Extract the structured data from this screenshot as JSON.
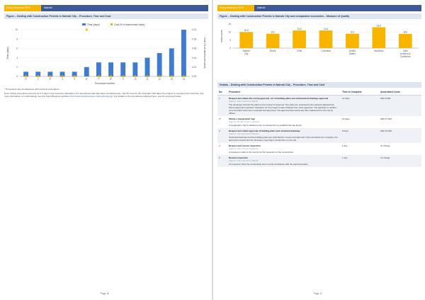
{
  "left": {
    "header": {
      "tag": "Doing Business 2016",
      "city": "Nairobi"
    },
    "figure_title": "Figure – Dealing with Construction Permits in Nairobi City – Procedure, Time and Cost",
    "note_1": "* Procedures are simultaneous with previous procedures.",
    "note_2": "Note: Online procedures account for 0.0 days in the total time calculation. For procedures that take place simultaneously, only the time for the procedure that takes the longest is counted in the total time. For more information on methodology, see the Doing Business website",
    "note_link": "(http://www.doingbusiness.org/methodology)",
    "note_3": ". For details on the procedures reflected here, see the summary below.",
    "page_number": "Page 15"
  },
  "right": {
    "header": {
      "tag": "Doing Business 2016",
      "city": "Nairobi"
    },
    "figure_title": "Figure – Dealing with Construction Permits in Nairobi City and comparator economies – Measure of Quality",
    "table_title": "Details – Dealing with Construction Permits in Nairobi City – Procedure, Time and Cost",
    "table_headers": {
      "no": "No.",
      "procedure": "Procedure",
      "time": "Time to Complete",
      "cost": "Associated Costs"
    },
    "rows": [
      {
        "no": "1",
        "title": "Request and obtain the zoning approval, set of building plans and architectural drawings approval",
        "agency": "Agency: City Council of Nairobi",
        "body": "The developer submits the plans to the county for approval. The plans are reviewed by the relevant departments before approval is granted. Clearance for the project is also obtained from other agencies. The applicant is notified once the plans have been reviewed and approved. The approval documents are then collected from the county offices.",
        "time": "21 days",
        "cost": "KES 5,000"
      },
      {
        "no": "2*",
        "title": "Obtain a topographic map",
        "agency": "Agency: Private survey company",
        "body": "A topographic map is obtained prior to construction to establish the site layout.",
        "time": "14 days",
        "cost": "KES 17,000"
      },
      {
        "no": "3",
        "title": "Request and obtain approval of building plans and structural drawings",
        "agency": "Agency: City Council of Nairobi",
        "body": "Structural drawings and the building plans are submitted for review and approval. Once all checks are complete, the approval is issued and the developer may begin construction on the site.",
        "time": "8 days",
        "cost": "KES 10,000"
      },
      {
        "no": "4",
        "title": "Request and receive inspection",
        "agency": "Agency: City Council of Nairobi",
        "body": "A request is made to the county for the inspection of the construction.",
        "time": "1 day",
        "cost": "no charge"
      },
      {
        "no": "5",
        "title": "Receive inspection",
        "agency": "Agency: City Council of Nairobi",
        "body": "An inspector visits the construction site to verify compliance with the approved plans.",
        "time": "1 day",
        "cost": "no charge"
      }
    ],
    "page_number": "Page 17"
  },
  "chart_data": [
    {
      "type": "bar",
      "title": "",
      "series": [
        {
          "name": "Time (days)",
          "values": [
            1,
            1,
            1,
            1,
            1,
            2,
            3,
            3,
            3,
            3,
            4,
            5,
            6,
            10
          ]
        },
        {
          "name": "Cost (% of warehouse value)",
          "values": [
            0.0,
            0.0,
            0.0,
            0.0,
            0.0,
            0.1,
            0.0,
            0.0,
            0.0,
            0.0,
            0.0,
            0.0,
            0.0,
            0.0
          ]
        }
      ],
      "categories": [
        "1*",
        "2",
        "3*",
        "4",
        "5",
        "6*",
        "7*",
        "8*",
        "9",
        "10",
        "11",
        "12",
        "13",
        "14"
      ],
      "xlabel": "Procedure number",
      "ylabel": "Time (days)",
      "y2label": "Cost (% of warehouse value)",
      "ylim": [
        0,
        10
      ],
      "y2lim": [
        0,
        0.1
      ],
      "colors": {
        "bar": "#3f7ccf",
        "marker": "#f7b500"
      }
    },
    {
      "type": "bar",
      "title": "",
      "categories": [
        "Nairobi City",
        "Brazil",
        "Chile",
        "Colombia",
        "United States",
        "Mauritius",
        "Latin America & Caribbean"
      ],
      "values": [
        10.0,
        9.0,
        11.0,
        11.0,
        9.0,
        13.0,
        8.9
      ],
      "labels": [
        "10.0",
        "9.0",
        "11.0",
        "11.0",
        "9.0",
        "13.0",
        "8.9"
      ],
      "ylabel": "Index score",
      "ylim": [
        0,
        15
      ],
      "colors": {
        "bar": "#f7b500"
      }
    }
  ]
}
